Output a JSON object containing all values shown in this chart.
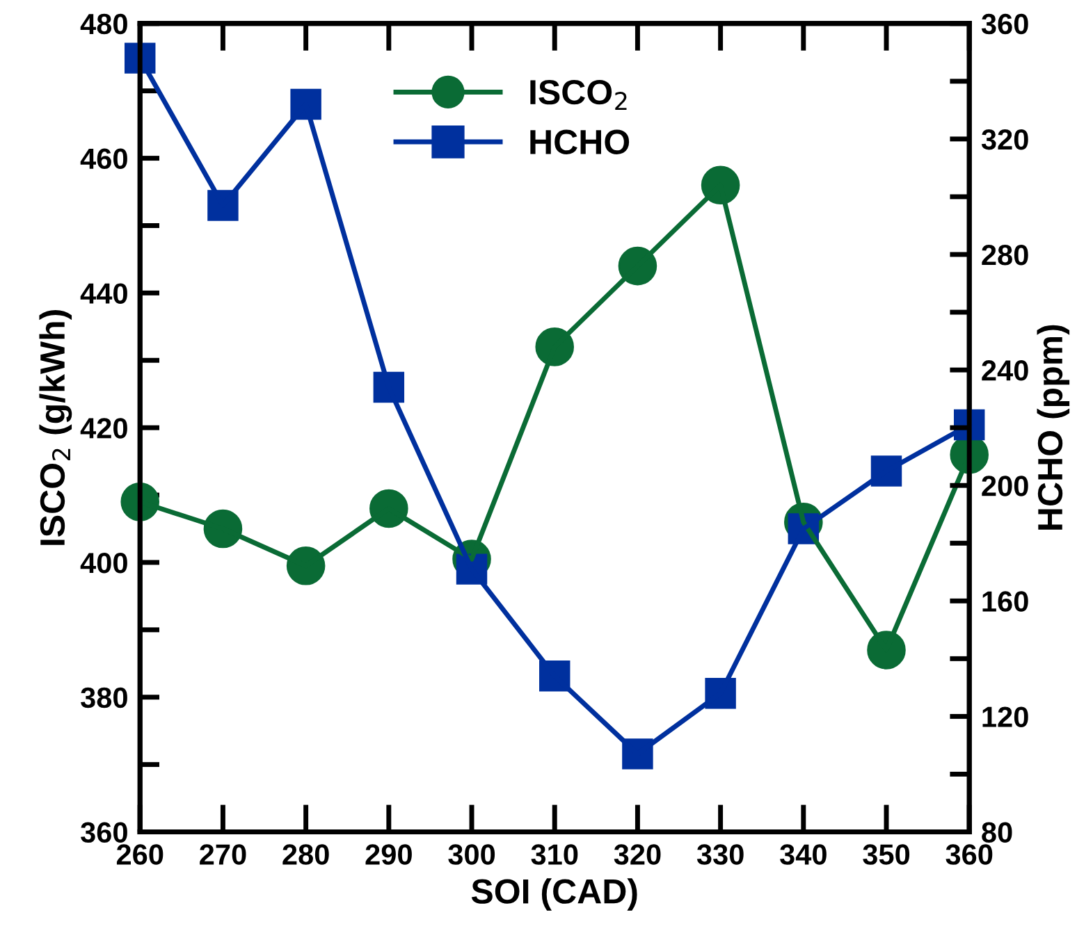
{
  "chart_data": {
    "type": "line",
    "xlabel": "SOI (CAD)",
    "ylabel": "ISCO$_{2}$ (g/kWh)",
    "y2label": "HCHO (ppm)",
    "x": [
      260,
      270,
      280,
      290,
      300,
      310,
      320,
      330,
      340,
      350,
      360
    ],
    "series": [
      {
        "name": "ISCO$_{2}$",
        "color": "#0a6b35",
        "marker": "circle",
        "values": [
          409,
          405,
          399.5,
          408,
          400.5,
          432,
          444,
          456,
          406,
          387,
          416
        ]
      },
      {
        "name": "HCHO",
        "color": "#00309e",
        "marker": "square",
        "axis": "y2",
        "values": [
          348,
          297,
          332,
          234,
          171,
          134,
          107,
          128,
          185,
          205,
          221
        ]
      }
    ],
    "xlim": [
      260,
      360
    ],
    "xticks": [
      260,
      270,
      280,
      290,
      300,
      310,
      320,
      330,
      340,
      350,
      360
    ],
    "ylim": [
      360,
      480
    ],
    "yticks": [
      360,
      {
        "value": 370,
        "label": null
      },
      380,
      {
        "value": 390,
        "label": null
      },
      400,
      {
        "value": 410,
        "label": null
      },
      420,
      {
        "value": 430,
        "label": null
      },
      440,
      {
        "value": 450,
        "label": null
      },
      460,
      {
        "value": 470,
        "label": null
      },
      480
    ],
    "y2lim": [
      80,
      360
    ],
    "y2ticks": [
      80,
      {
        "value": 100,
        "label": null
      },
      120,
      {
        "value": 140,
        "label": null
      },
      160,
      {
        "value": 180,
        "label": null
      },
      200,
      {
        "value": 220,
        "label": null
      },
      240,
      {
        "value": 260,
        "label": null
      },
      280,
      {
        "value": 300,
        "label": null
      },
      320,
      {
        "value": 340,
        "label": null
      },
      360
    ],
    "legend": "top",
    "grid": false,
    "line_style": "solid"
  }
}
